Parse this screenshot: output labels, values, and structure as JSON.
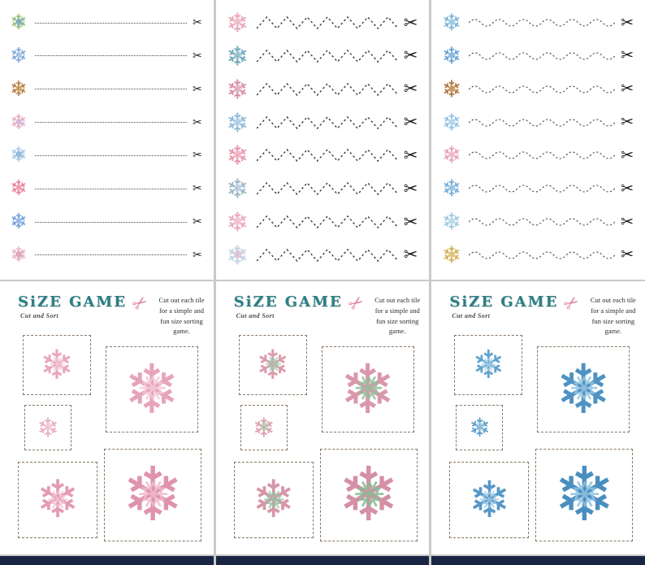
{
  "icons": {
    "snowflake": "❄",
    "snowflake_alt": "❅",
    "scissors": "✂"
  },
  "footer_color": "#1a2544",
  "cut_pages": [
    {
      "name": "straight-lines",
      "line_style": "straight",
      "line_color": "#4a4a4a",
      "scissors_color": "#1c1c1c",
      "scissors_size": 14,
      "flake_size": 26,
      "rows": [
        {
          "color": "#93bd72",
          "accent": "#5f9fca"
        },
        {
          "color": "#79a6d6",
          "accent": "#b9d2ea"
        },
        {
          "color": "#b1793f",
          "accent": "#d9a96b"
        },
        {
          "color": "#e7a9c3",
          "accent": "#c9b6da"
        },
        {
          "color": "#a9c9e6",
          "accent": "#7fa9d2"
        },
        {
          "color": "#e57c94",
          "accent": "#f2aebc"
        },
        {
          "color": "#6f9dd9",
          "accent": "#a2c4e9"
        },
        {
          "color": "#e9b2c6",
          "accent": "#d392ae"
        }
      ]
    },
    {
      "name": "zigzag-lines",
      "line_style": "zigzag",
      "line_color": "#3c3c3c",
      "scissors_color": "#161616",
      "scissors_size": 21,
      "flake_size": 33,
      "rows": [
        {
          "color": "#e9a6b8",
          "accent": "#f3c6d2"
        },
        {
          "color": "#73a9b9",
          "accent": "#a6cdd6"
        },
        {
          "color": "#d78fa9",
          "accent": "#eab9c9"
        },
        {
          "color": "#8fb9d9",
          "accent": "#bcd8ec"
        },
        {
          "color": "#e795ad",
          "accent": "#f3bccb"
        },
        {
          "color": "#9cb6c6",
          "accent": "#c6dae6"
        },
        {
          "color": "#e7a9c1",
          "accent": "#f3cada"
        },
        {
          "color": "#c3d3e6",
          "accent": "#e2b9c9"
        }
      ]
    },
    {
      "name": "wavy-lines",
      "line_style": "wavy",
      "line_color": "#6e6152",
      "scissors_color": "#161616",
      "scissors_size": 19,
      "flake_size": 29,
      "rows": [
        {
          "color": "#7cb3d9",
          "accent": "#b3d6ec"
        },
        {
          "color": "#68a2d3",
          "accent": "#9cc6e6"
        },
        {
          "color": "#ac763f",
          "accent": "#d6a96e"
        },
        {
          "color": "#92c2e2",
          "accent": "#c2dff1"
        },
        {
          "color": "#e7a2b9",
          "accent": "#f3c6d4"
        },
        {
          "color": "#76abd6",
          "accent": "#aacfe9"
        },
        {
          "color": "#9cc9de",
          "accent": "#c9e2ef"
        },
        {
          "color": "#d2af58",
          "accent": "#e9cf8c"
        }
      ]
    }
  ],
  "size_pages": [
    {
      "title": "SiZE GAME",
      "subtitle": "Cut and Sort",
      "description": "Cut out each tile for a simple and fun size sorting game.",
      "title_color": "#2a8186",
      "scissors_color": "#e083a0",
      "tiles": [
        {
          "slot": "a",
          "color": "#e8a5bb",
          "accent": "#f4cbd8",
          "size": 50
        },
        {
          "slot": "b",
          "color": "#eaaec1",
          "accent": "#f6d2dd",
          "size": 33
        },
        {
          "slot": "c",
          "color": "#e39bb3",
          "accent": "#f2c2d0",
          "size": 64
        },
        {
          "slot": "d",
          "color": "#e7a3bb",
          "accent": "#f4c9d6",
          "size": 84
        },
        {
          "slot": "e",
          "color": "#df93ac",
          "accent": "#f0bccb",
          "size": 92
        }
      ]
    },
    {
      "title": "SiZE GAME",
      "subtitle": "Cut and Sort",
      "description": "Cut out each tile for a simple and fun size sorting game.",
      "title_color": "#2a8186",
      "scissors_color": "#e083a0",
      "tiles": [
        {
          "slot": "a",
          "color": "#dc9cae",
          "accent": "#9ec7a6",
          "size": 50
        },
        {
          "slot": "b",
          "color": "#de9fb0",
          "accent": "#a6cbac",
          "size": 33
        },
        {
          "slot": "c",
          "color": "#d896aa",
          "accent": "#96c3a0",
          "size": 64
        },
        {
          "slot": "d",
          "color": "#da97ac",
          "accent": "#8fbf9a",
          "size": 84
        },
        {
          "slot": "e",
          "color": "#d590a6",
          "accent": "#88bb94",
          "size": 92
        }
      ]
    },
    {
      "title": "SiZE GAME",
      "subtitle": "Cut and Sort",
      "description": "Cut out each tile for a simple and fun size sorting game.",
      "title_color": "#2a8186",
      "scissors_color": "#e083a0",
      "tiles": [
        {
          "slot": "a",
          "color": "#63a3cd",
          "accent": "#a9d2e9",
          "size": 48
        },
        {
          "slot": "b",
          "color": "#5c9cc9",
          "accent": "#a2cde6",
          "size": 32
        },
        {
          "slot": "c",
          "color": "#5697c6",
          "accent": "#9cc9e4",
          "size": 62
        },
        {
          "slot": "d",
          "color": "#4f92c3",
          "accent": "#96c6e2",
          "size": 84
        },
        {
          "slot": "e",
          "color": "#4a8ec0",
          "accent": "#90c2e0",
          "size": 92
        }
      ]
    }
  ]
}
